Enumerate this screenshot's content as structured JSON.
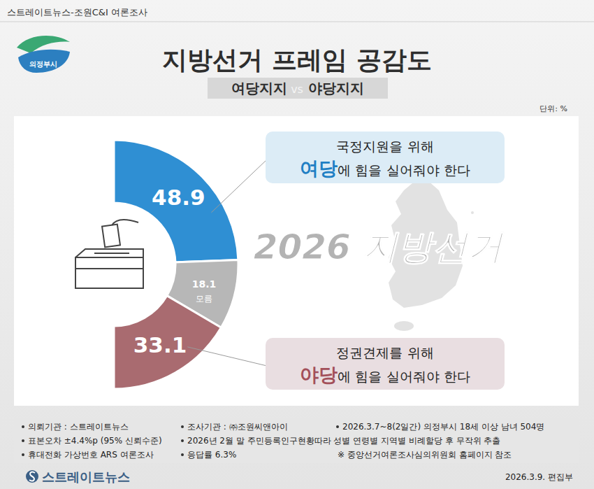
{
  "header": "스트레이트뉴스-조원C&I 여론조사",
  "logo_text": "의정부시",
  "chart_data": {
    "type": "half-donut",
    "title": "지방선거 프레임 공감도",
    "subtitle": "여당지지 vs 야당지지",
    "unit": "단위: %",
    "annotation": "2026 지방선거",
    "categories": [
      "국정지원을 위해 여당에 힘을 실어줘야 한다",
      "모름",
      "정권견제를 위해 야당에 힘을 실어줘야 한다"
    ],
    "values": [
      48.9,
      18.1,
      33.1
    ],
    "colors": [
      "#2f8fd3",
      "#b7b7b7",
      "#a96b70"
    ],
    "data_labels": true
  },
  "footer": {
    "notes": [
      "의뢰기관 : 스트레이트뉴스",
      "조사기관 : ㈜조원씨앤아이",
      "2026.3.7~8(2일간) 의정부시 18세 이상 남녀 504명",
      "표본오차 ±4.4%p (95% 신뢰수준)",
      "2026년 2월 말 주민등록인구현황따라 성별 연령별 지역별 비례할당 후 무작위 추출",
      "휴대전화 가상번호 ARS 여론조사",
      "응답률 6.3%",
      "※ 중앙선거여론조사심의위원회 홈페이지 참조"
    ],
    "brand": "스트레이트뉴스",
    "date": "2026.3.9.  편집부"
  }
}
